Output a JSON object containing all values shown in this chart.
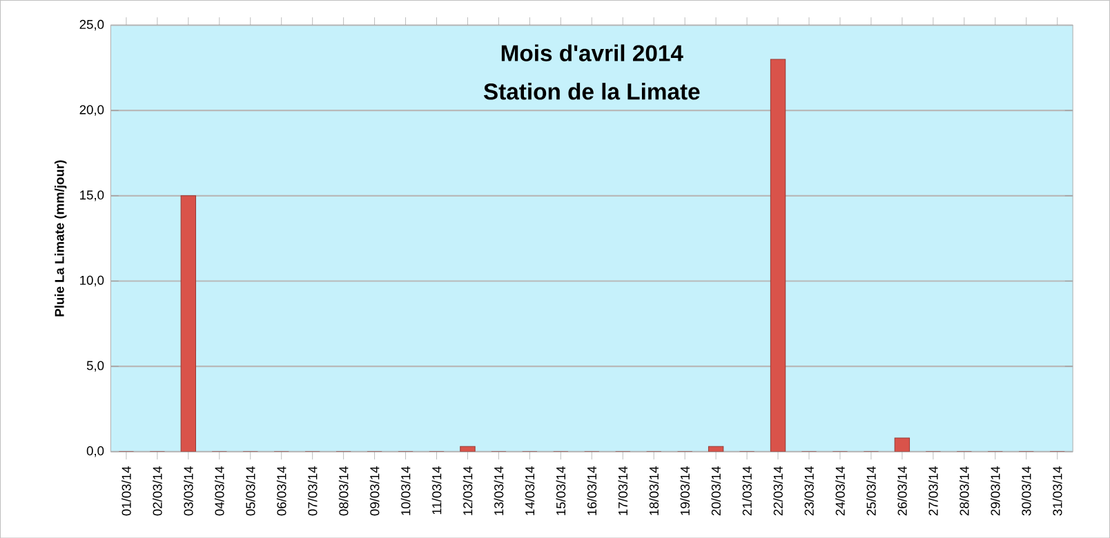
{
  "chart_data": {
    "type": "bar",
    "title": "Mois d'avril 2014",
    "subtitle": "Station de la Limate",
    "ylabel": "Pluie La Limate (mm/jour)",
    "categories": [
      "01/03/14",
      "02/03/14",
      "03/03/14",
      "04/03/14",
      "05/03/14",
      "06/03/14",
      "07/03/14",
      "08/03/14",
      "09/03/14",
      "10/03/14",
      "11/03/14",
      "12/03/14",
      "13/03/14",
      "14/03/14",
      "15/03/14",
      "16/03/14",
      "17/03/14",
      "18/03/14",
      "19/03/14",
      "20/03/14",
      "21/03/14",
      "22/03/14",
      "23/03/14",
      "24/03/14",
      "25/03/14",
      "26/03/14",
      "27/03/14",
      "28/03/14",
      "29/03/14",
      "30/03/14",
      "31/03/14"
    ],
    "values": [
      0,
      0,
      15.0,
      0,
      0,
      0,
      0,
      0,
      0,
      0,
      0,
      0.3,
      0,
      0,
      0,
      0,
      0,
      0,
      0,
      0.3,
      0,
      23.0,
      0,
      0,
      0,
      0.8,
      0,
      0,
      0,
      0,
      0
    ],
    "color": "#d9534a",
    "ylim": [
      0,
      25
    ],
    "yticks": [
      {
        "value": 0,
        "label": "0,0"
      },
      {
        "value": 5,
        "label": "5,0"
      },
      {
        "value": 10,
        "label": "10,0"
      },
      {
        "value": 15,
        "label": "15,0"
      },
      {
        "value": 20,
        "label": "20,0"
      },
      {
        "value": 25,
        "label": "25,0"
      }
    ],
    "grid": "y"
  }
}
